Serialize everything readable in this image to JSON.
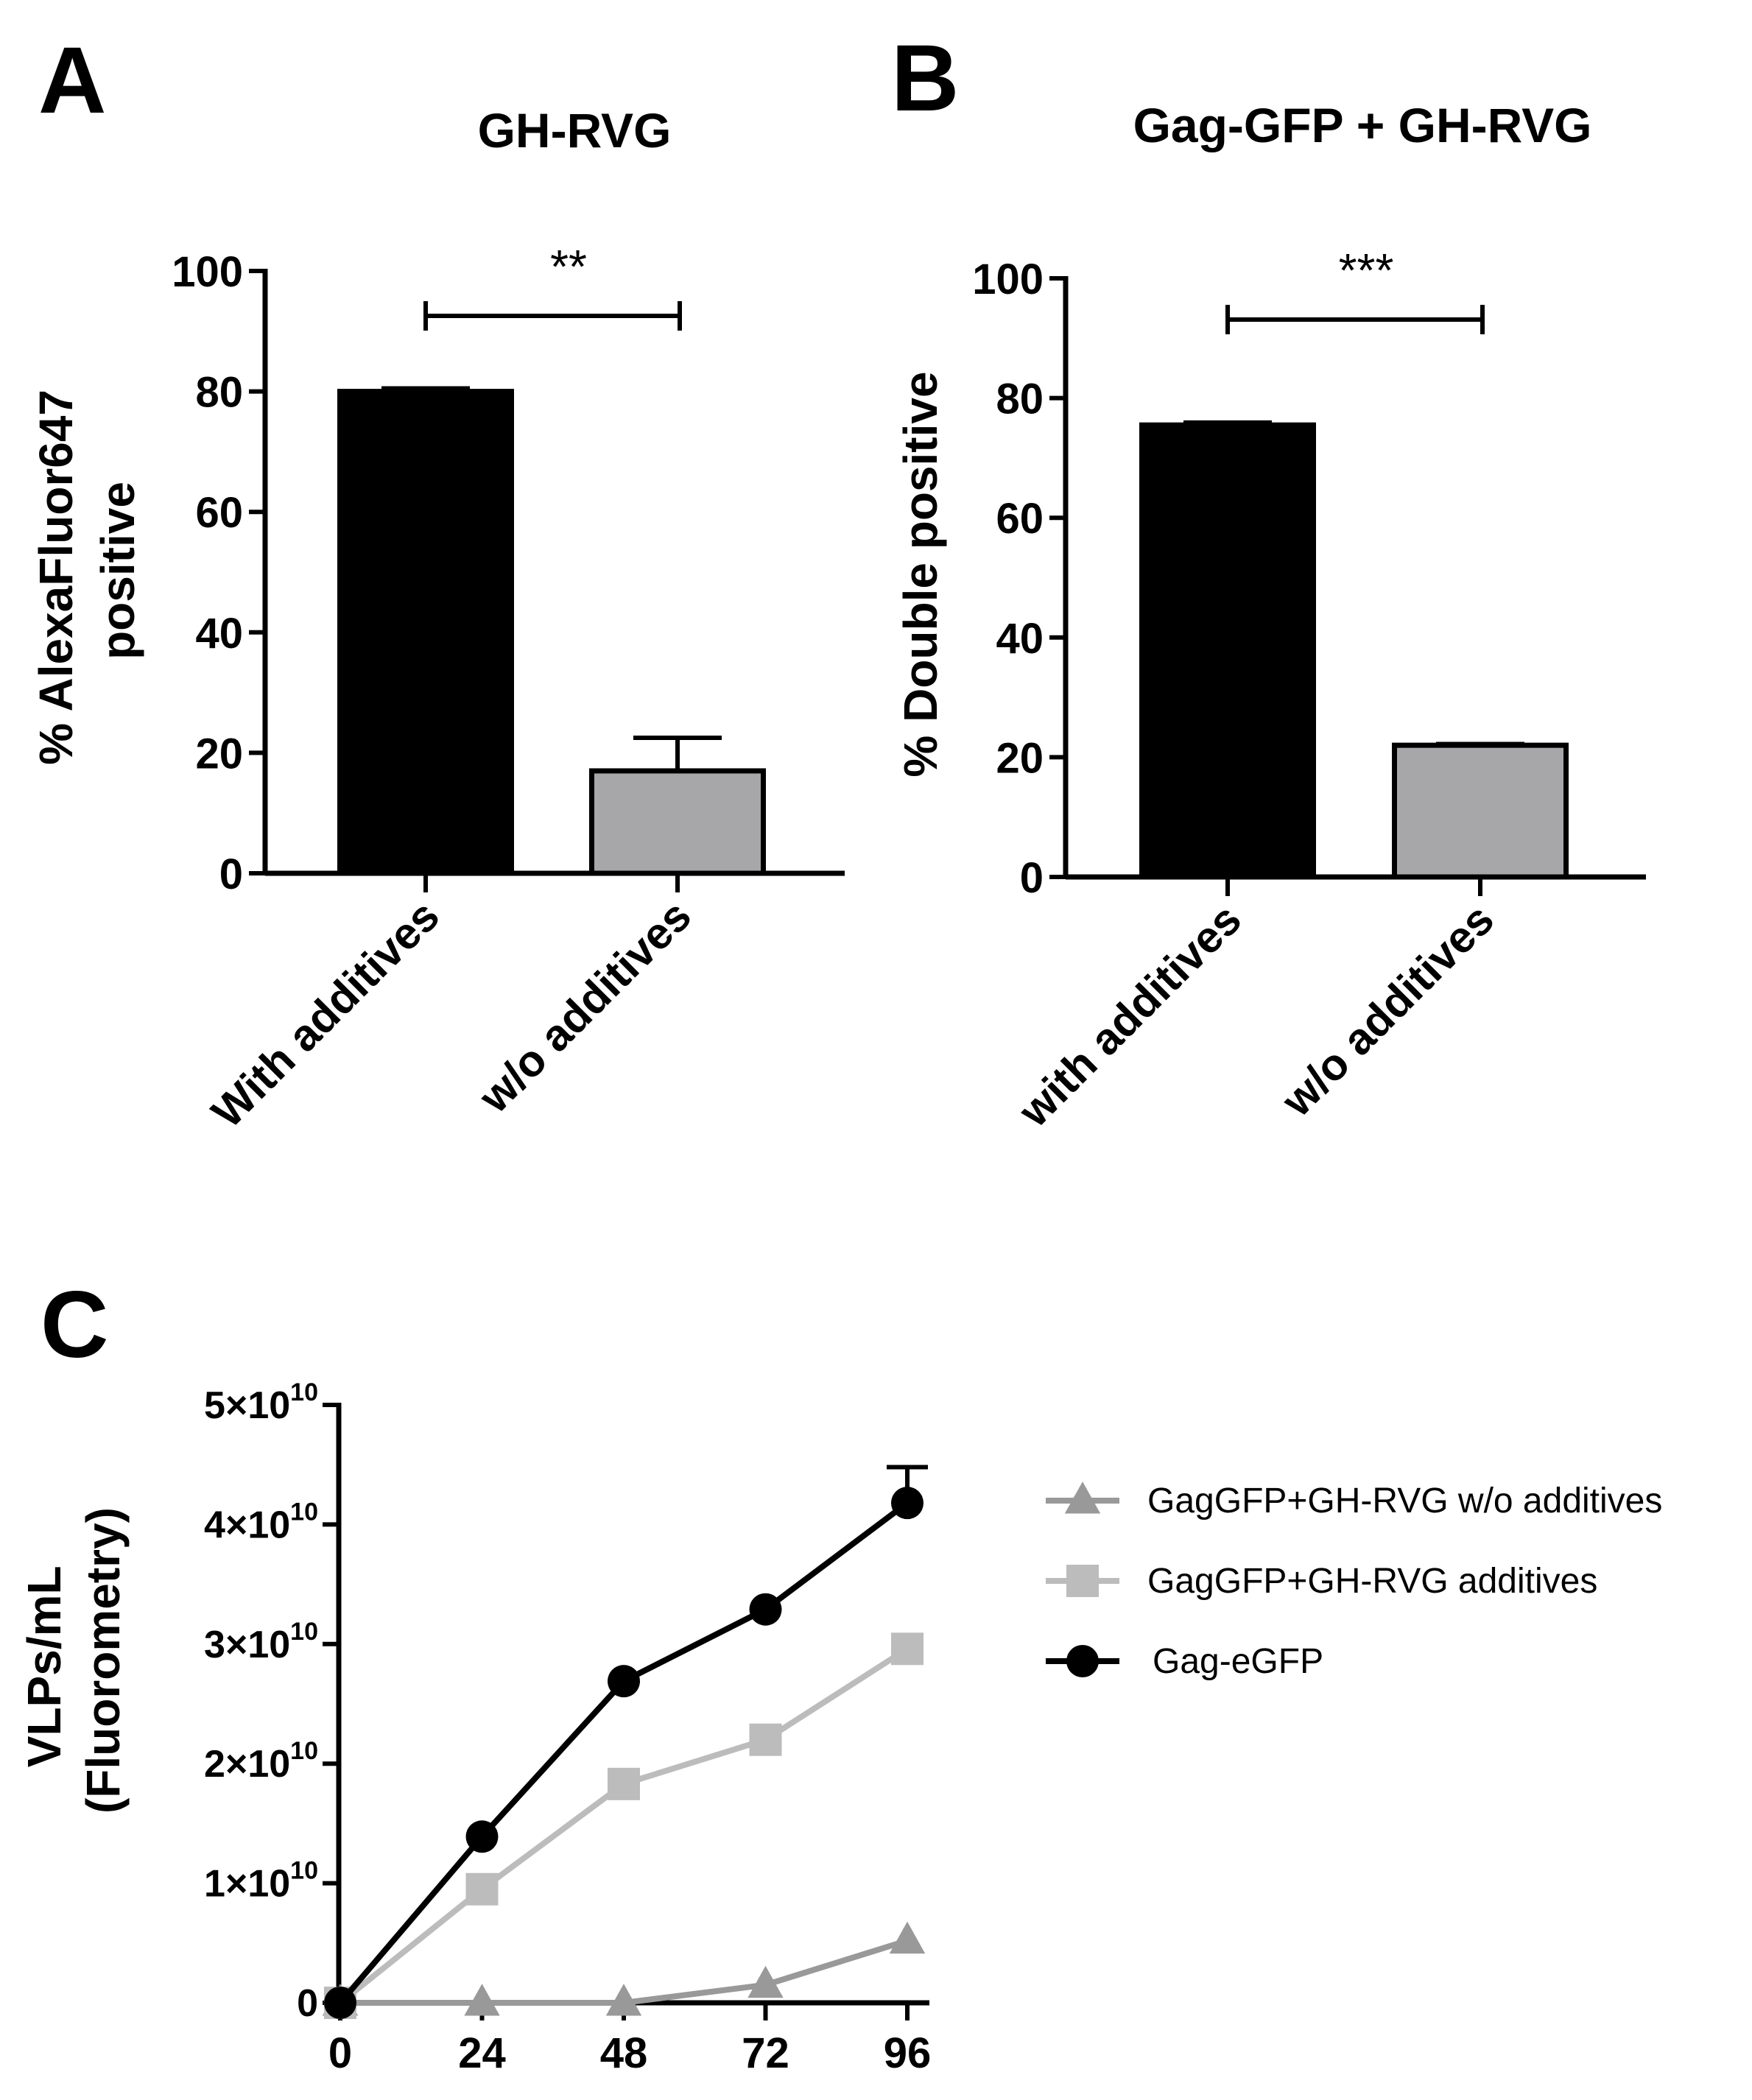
{
  "chart_data": [
    {
      "panel": "A",
      "type": "bar",
      "title": "GH-RVG",
      "ylabel": "% AlexaFluor647\npositive",
      "categories": [
        "With additives",
        "w/o additives"
      ],
      "values": [
        80,
        17
      ],
      "errors": [
        0.5,
        5.5
      ],
      "colors": [
        "#000000",
        "#a7a7aa"
      ],
      "ylim": [
        0,
        100
      ],
      "yticks": [
        "0",
        "20",
        "40",
        "60",
        "80",
        "100"
      ],
      "significance": "**"
    },
    {
      "panel": "B",
      "type": "bar",
      "title": "Gag-GFP + GH-RVG",
      "ylabel": "% Double positive",
      "categories": [
        "with additives",
        "w/o additives"
      ],
      "values": [
        75.5,
        22
      ],
      "errors": [
        0.4,
        0.2
      ],
      "colors": [
        "#000000",
        "#a7a7aa"
      ],
      "ylim": [
        0,
        100
      ],
      "yticks": [
        "0",
        "20",
        "40",
        "60",
        "80",
        "100"
      ],
      "significance": "***"
    },
    {
      "panel": "C",
      "type": "line",
      "ylabel": "VLPs/mL\n(Fluorometry)",
      "x": [
        0,
        24,
        48,
        72,
        96
      ],
      "xticks": [
        "0",
        "24",
        "48",
        "72",
        "96"
      ],
      "xlim": [
        0,
        96
      ],
      "ylim": [
        0,
        50000000000
      ],
      "yticks": [
        {
          "base": "0",
          "exp": ""
        },
        {
          "base": "1×10",
          "exp": "10"
        },
        {
          "base": "2×10",
          "exp": "10"
        },
        {
          "base": "3×10",
          "exp": "10"
        },
        {
          "base": "4×10",
          "exp": "10"
        },
        {
          "base": "5×10",
          "exp": "10"
        }
      ],
      "legend_position": "right",
      "series": [
        {
          "name": "GagGFP+GH-RVG w/o additives",
          "marker": "triangle",
          "color": "#999999",
          "values": [
            0,
            0,
            0,
            1500000000,
            5200000000
          ]
        },
        {
          "name": "GagGFP+GH-RVG additives",
          "marker": "square",
          "color": "#bcbcbc",
          "values": [
            0,
            9500000000,
            18300000000,
            22000000000,
            29600000000
          ]
        },
        {
          "name": "Gag-eGFP",
          "marker": "circle",
          "color": "#000000",
          "values": [
            0,
            13900000000,
            26900000000,
            32900000000,
            41800000000
          ],
          "errors": [
            0,
            0,
            0,
            0,
            3000000000
          ]
        }
      ]
    }
  ],
  "panel_letters": [
    "A",
    "B",
    "C"
  ]
}
